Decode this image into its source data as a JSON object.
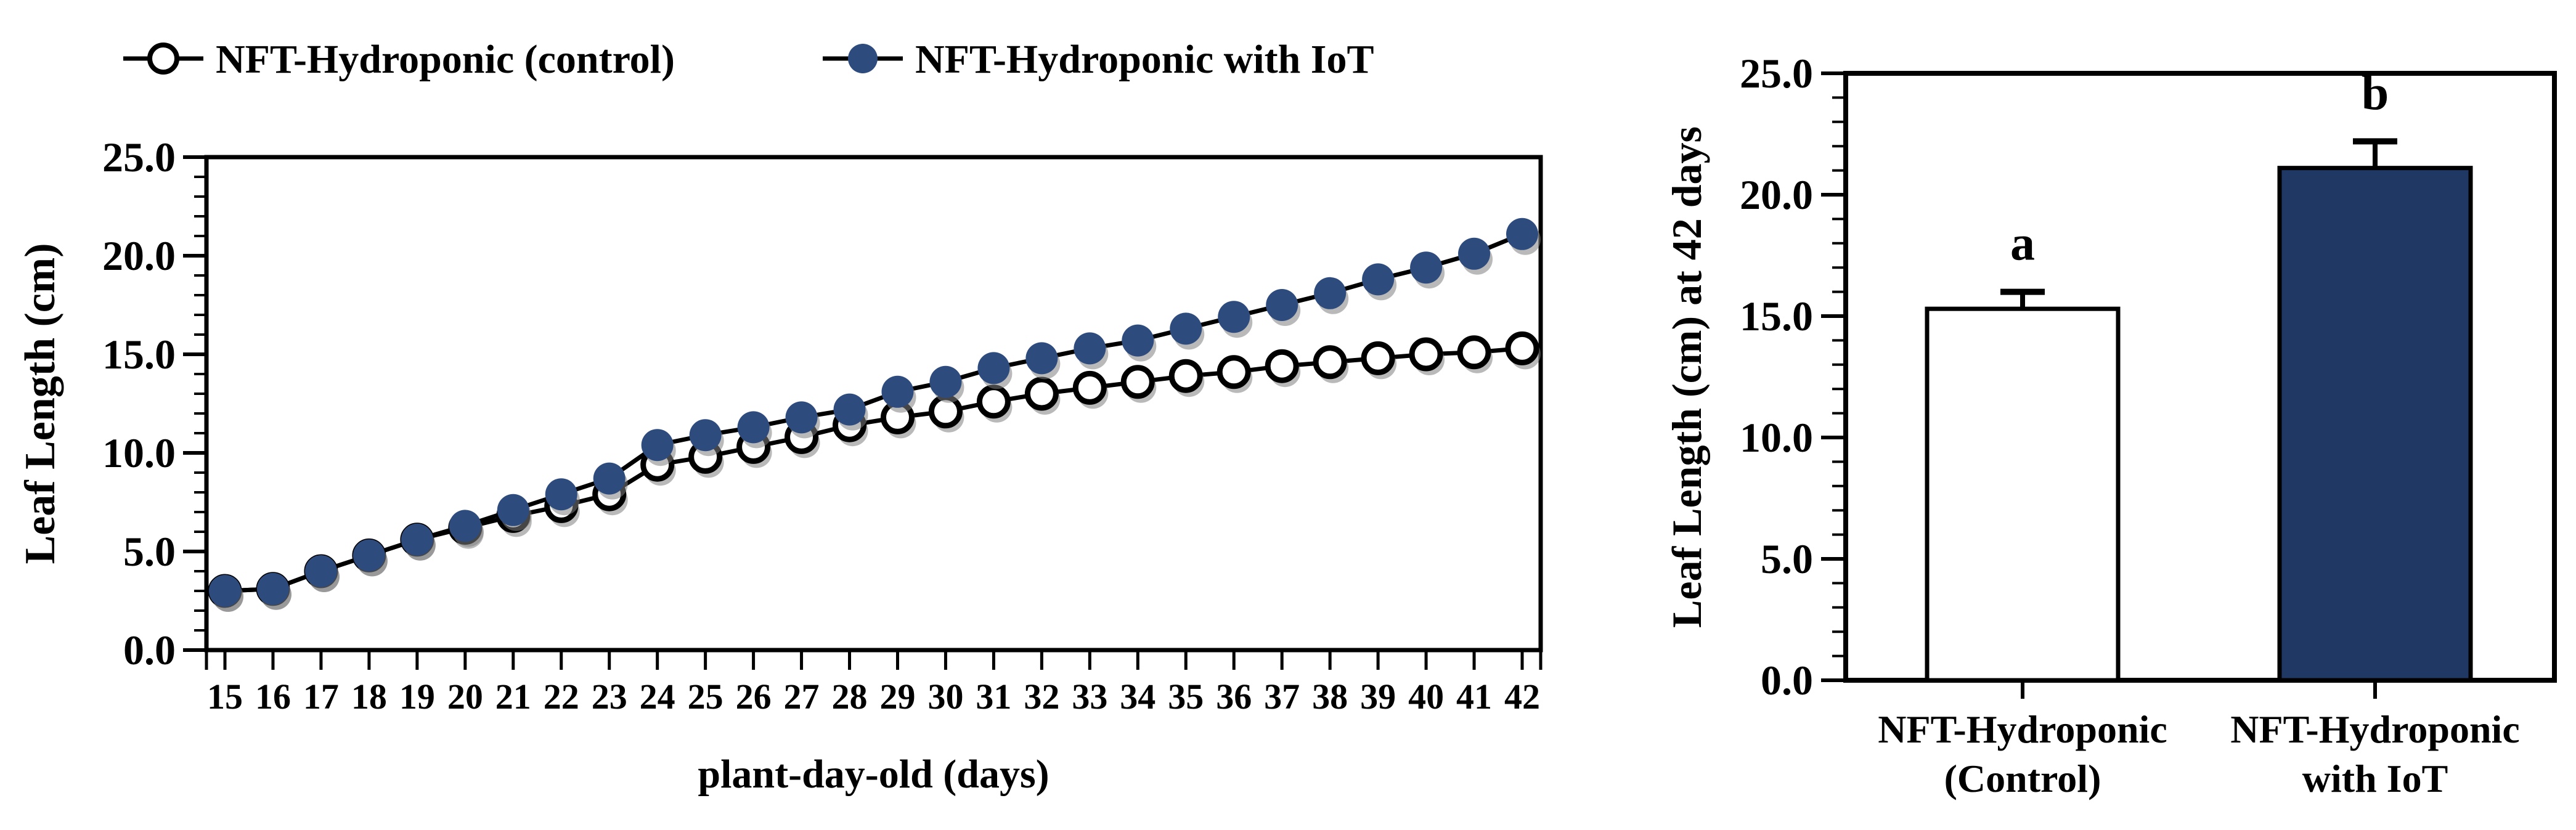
{
  "figure": {
    "background": "#ffffff",
    "colors": {
      "axis_stroke": "#000000",
      "iot_marker_fill": "#2E4B7E",
      "control_marker_fill": "#FFFFFF",
      "bar_iot_fill": "#1F3864",
      "bar_control_fill": "#FFFFFF",
      "marker_shadow": "#7F7F7F"
    },
    "legend": {
      "items": [
        {
          "label": "NFT-Hydroponic (control)",
          "marker": "open-circle-icon"
        },
        {
          "label": "NFT-Hydroponic with IoT",
          "marker": "filled-circle-icon"
        }
      ]
    }
  },
  "chart_data": [
    {
      "type": "line",
      "title": "",
      "xlabel": "plant-day-old (days)",
      "ylabel": "Leaf Length (cm)",
      "ylim": [
        0,
        25
      ],
      "ytick_step": 5,
      "yminor_step": 1,
      "ytick_labels": [
        "0.0",
        "5.0",
        "10.0",
        "15.0",
        "20.0",
        "25.0"
      ],
      "grid": false,
      "legend_position": "top",
      "x": [
        15,
        16,
        17,
        18,
        19,
        20,
        21,
        22,
        23,
        24,
        25,
        26,
        27,
        28,
        29,
        30,
        31,
        32,
        33,
        34,
        35,
        36,
        37,
        38,
        39,
        40,
        41,
        42
      ],
      "series": [
        {
          "name": "NFT-Hydroponic (control)",
          "marker": "open-circle",
          "line_color": "#000000",
          "values": [
            3.0,
            3.1,
            4.0,
            4.8,
            5.6,
            6.2,
            6.8,
            7.3,
            7.9,
            9.4,
            9.8,
            10.3,
            10.8,
            11.4,
            11.8,
            12.1,
            12.6,
            13.0,
            13.3,
            13.6,
            13.9,
            14.1,
            14.4,
            14.6,
            14.8,
            15.0,
            15.1,
            15.3
          ]
        },
        {
          "name": "NFT-Hydroponic with IoT",
          "marker": "filled-circle",
          "line_color": "#000000",
          "values": [
            3.0,
            3.1,
            4.0,
            4.8,
            5.6,
            6.3,
            7.1,
            7.9,
            8.7,
            10.4,
            10.9,
            11.3,
            11.8,
            12.2,
            13.1,
            13.6,
            14.3,
            14.8,
            15.3,
            15.7,
            16.3,
            16.9,
            17.5,
            18.1,
            18.8,
            19.4,
            20.1,
            21.1
          ]
        }
      ]
    },
    {
      "type": "bar",
      "title": "",
      "xlabel": "",
      "ylabel": "Leaf Length (cm) at 42 days",
      "ylim": [
        0,
        25
      ],
      "ytick_step": 5,
      "yminor_step": 1,
      "ytick_labels": [
        "0.0",
        "5.0",
        "10.0",
        "15.0",
        "20.0",
        "25.0"
      ],
      "grid": false,
      "categories": [
        "NFT-Hydroponic\n(Control)",
        "NFT-Hydroponic\nwith IoT"
      ],
      "values": [
        15.3,
        21.1
      ],
      "errors_plus": [
        0.7,
        1.1
      ],
      "sig_letters": [
        "a",
        "b"
      ]
    }
  ]
}
